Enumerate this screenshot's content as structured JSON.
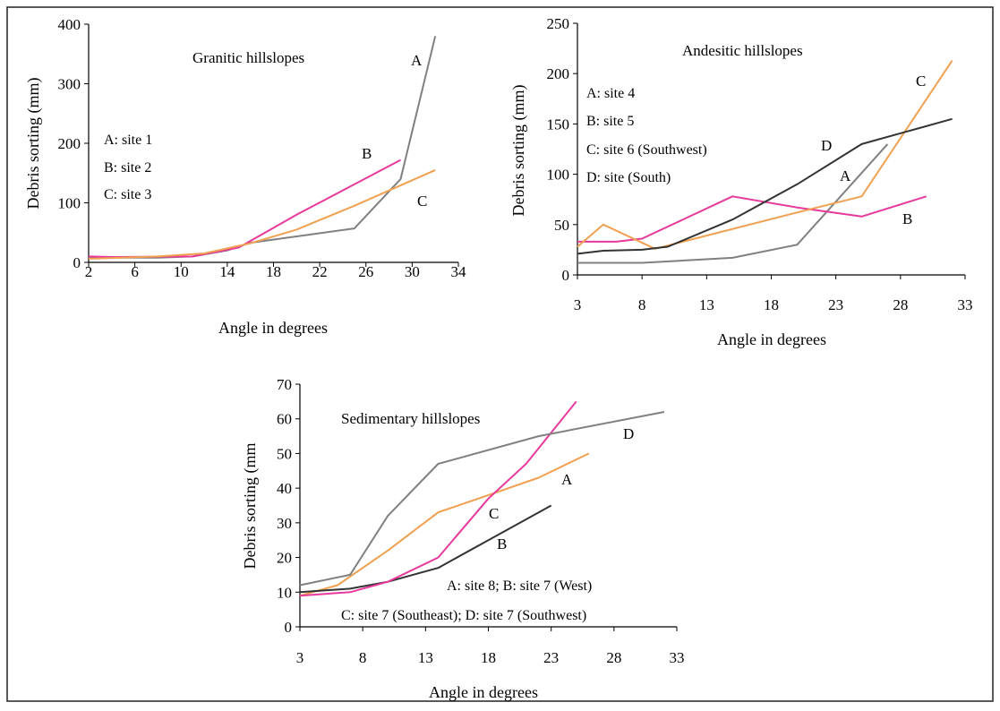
{
  "chart_data": [
    {
      "type": "line",
      "title": "Granitic hillslopes",
      "xlabel": "Angle in degrees",
      "ylabel": "Debris sorting (mm)",
      "xlim": [
        2,
        34
      ],
      "ylim": [
        0,
        400
      ],
      "xticks": [
        2,
        6,
        10,
        14,
        18,
        22,
        26,
        30,
        34
      ],
      "yticks": [
        0,
        100,
        200,
        300,
        400
      ],
      "legend": [
        "A: site 1",
        "B: site 2",
        "C: site 3"
      ],
      "series": [
        {
          "name": "A",
          "color": "#808080",
          "points": [
            [
              2,
              8
            ],
            [
              8,
              8
            ],
            [
              11,
              10
            ],
            [
              14,
              20
            ],
            [
              16,
              33
            ],
            [
              25,
              57
            ],
            [
              29,
              140
            ],
            [
              32,
              380
            ]
          ]
        },
        {
          "name": "B",
          "color": "#e6399b",
          "points": [
            [
              2,
              10
            ],
            [
              4,
              9
            ],
            [
              11,
              10
            ],
            [
              15,
              25
            ],
            [
              20,
              80
            ],
            [
              29,
              172
            ]
          ]
        },
        {
          "name": "C",
          "color": "#f0a050",
          "points": [
            [
              2,
              6
            ],
            [
              8,
              10
            ],
            [
              12,
              15
            ],
            [
              16,
              32
            ],
            [
              20,
              55
            ],
            [
              25,
              95
            ],
            [
              32,
              155
            ]
          ]
        }
      ]
    },
    {
      "type": "line",
      "title": "Andesitic hillslopes",
      "xlabel": "Angle in degrees",
      "ylabel": "Debris sorting (mm)",
      "xlim": [
        3,
        33
      ],
      "ylim": [
        0,
        250
      ],
      "xticks": [
        3,
        8,
        13,
        18,
        23,
        28,
        33
      ],
      "yticks": [
        0,
        50,
        100,
        150,
        200,
        250
      ],
      "legend": [
        "A: site 4",
        "B: site 5",
        "C: site 6 (Southwest)",
        "D: site (South)"
      ],
      "series": [
        {
          "name": "A",
          "color": "#808080",
          "points": [
            [
              3,
              12
            ],
            [
              8,
              12
            ],
            [
              15,
              17
            ],
            [
              20,
              30
            ],
            [
              27,
              130
            ]
          ]
        },
        {
          "name": "B",
          "color": "#e6399b",
          "points": [
            [
              3,
              33
            ],
            [
              6,
              33
            ],
            [
              8,
              36
            ],
            [
              15,
              78
            ],
            [
              20,
              67
            ],
            [
              25,
              58
            ],
            [
              30,
              78
            ]
          ]
        },
        {
          "name": "C",
          "color": "#f0a050",
          "points": [
            [
              3,
              28
            ],
            [
              5,
              50
            ],
            [
              9,
              26
            ],
            [
              20,
              62
            ],
            [
              25,
              78
            ],
            [
              32,
              213
            ]
          ]
        },
        {
          "name": "D",
          "color": "#333333",
          "points": [
            [
              3,
              21
            ],
            [
              5,
              24
            ],
            [
              8,
              25
            ],
            [
              10,
              28
            ],
            [
              15,
              55
            ],
            [
              20,
              90
            ],
            [
              25,
              130
            ],
            [
              32,
              155
            ]
          ]
        }
      ]
    },
    {
      "type": "line",
      "title": "Sedimentary hillslopes",
      "xlabel": "Angle in degrees",
      "ylabel": "Debris sorting (mm",
      "xlim": [
        3,
        33
      ],
      "ylim": [
        0,
        70
      ],
      "xticks": [
        3,
        8,
        13,
        18,
        23,
        28,
        33
      ],
      "yticks": [
        0,
        10,
        20,
        30,
        40,
        50,
        60,
        70
      ],
      "legend": [
        "A: site 8; B: site 7 (West)",
        "C: site 7 (Southeast); D: site 7 (Southwest)"
      ],
      "series": [
        {
          "name": "A",
          "color": "#f0a050",
          "points": [
            [
              3,
              9
            ],
            [
              6,
              12
            ],
            [
              10,
              22
            ],
            [
              14,
              33
            ],
            [
              18,
              38
            ],
            [
              22,
              43
            ],
            [
              26,
              50
            ]
          ]
        },
        {
          "name": "B",
          "color": "#333333",
          "points": [
            [
              3,
              10
            ],
            [
              7,
              11
            ],
            [
              10,
              13
            ],
            [
              14,
              17
            ],
            [
              18,
              25
            ],
            [
              23,
              35
            ]
          ]
        },
        {
          "name": "C",
          "color": "#e6399b",
          "points": [
            [
              3,
              9
            ],
            [
              7,
              10
            ],
            [
              10,
              13
            ],
            [
              14,
              20
            ],
            [
              18,
              37
            ],
            [
              21,
              47
            ],
            [
              25,
              65
            ]
          ]
        },
        {
          "name": "D",
          "color": "#808080",
          "points": [
            [
              3,
              12
            ],
            [
              7,
              15
            ],
            [
              10,
              32
            ],
            [
              14,
              47
            ],
            [
              22,
              55
            ],
            [
              32,
              62
            ]
          ]
        }
      ]
    }
  ]
}
